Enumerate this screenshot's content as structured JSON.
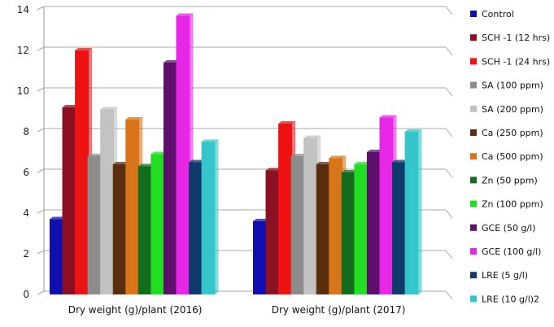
{
  "chart_data": {
    "type": "bar",
    "categories": [
      "Dry weight (g)/plant (2016)",
      "Dry weight (g)/plant (2017)"
    ],
    "ylim": [
      0,
      14
    ],
    "yticks": [
      0,
      2,
      4,
      6,
      8,
      10,
      12,
      14
    ],
    "grid": true,
    "legend_position": "right",
    "series": [
      {
        "name": "Control",
        "color": "#1010b0",
        "values": [
          3.7,
          3.6
        ]
      },
      {
        "name": "SCH -1 (12 hrs)",
        "color": "#8b1022",
        "values": [
          9.2,
          6.1
        ]
      },
      {
        "name": "SCH -1 (24 hrs)",
        "color": "#ee1111",
        "values": [
          12.0,
          8.4
        ]
      },
      {
        "name": "SA (100 ppm)",
        "color": "#8c8c8c",
        "values": [
          6.8,
          6.8
        ]
      },
      {
        "name": "SA (200 ppm)",
        "color": "#c2c2c2",
        "values": [
          9.1,
          7.7
        ]
      },
      {
        "name": "Ca (250 ppm)",
        "color": "#5a2e0c",
        "values": [
          6.4,
          6.4
        ]
      },
      {
        "name": "Ca (500 ppm)",
        "color": "#d8741a",
        "values": [
          8.6,
          6.7
        ]
      },
      {
        "name": "Zn (50 ppm)",
        "color": "#136b1e",
        "values": [
          6.3,
          6.0
        ]
      },
      {
        "name": "Zn (100 ppm)",
        "color": "#22dd22",
        "values": [
          6.9,
          6.4
        ]
      },
      {
        "name": "GCE (50 g/l)",
        "color": "#5e0f6e",
        "values": [
          11.4,
          7.0
        ]
      },
      {
        "name": "GCE (100 g/l)",
        "color": "#e627e6",
        "values": [
          13.7,
          8.7
        ]
      },
      {
        "name": "LRE (5 g/l)",
        "color": "#0f3a6b",
        "values": [
          6.5,
          6.5
        ]
      },
      {
        "name": "LRE (10 g/l)2",
        "color": "#35c6cc",
        "values": [
          7.5,
          8.0
        ]
      }
    ]
  }
}
